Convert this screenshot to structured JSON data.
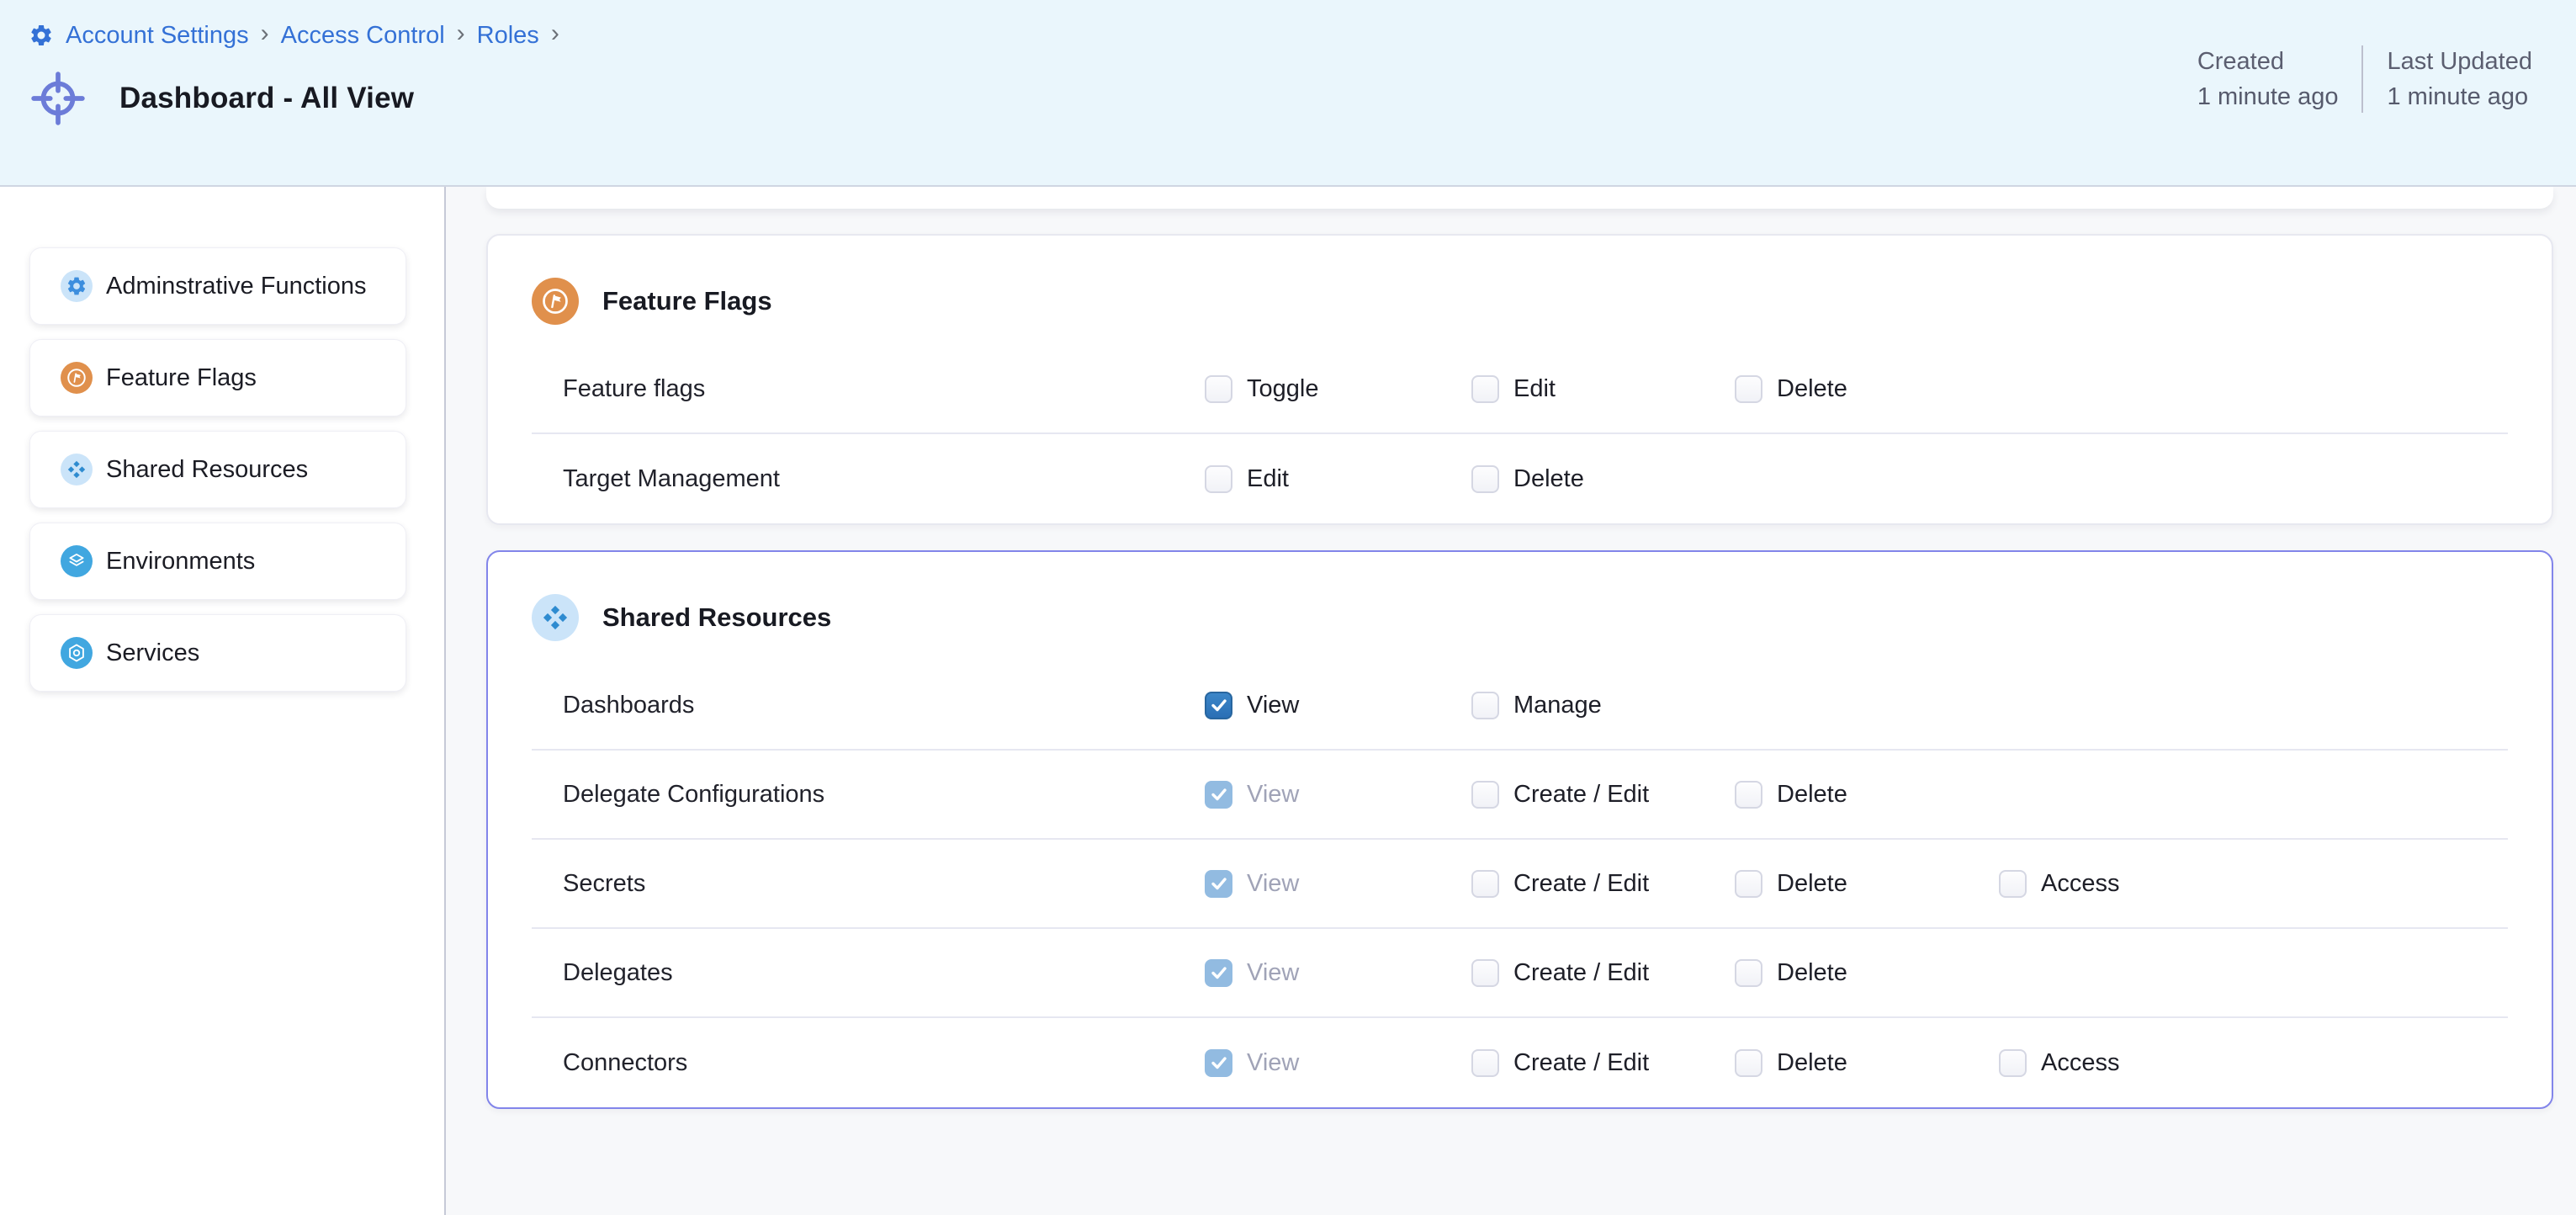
{
  "header": {
    "breadcrumb": {
      "items": [
        "Account Settings",
        "Access Control",
        "Roles"
      ],
      "separator": "›"
    },
    "title": "Dashboard - All View",
    "meta": [
      {
        "label": "Created",
        "value": "1 minute ago"
      },
      {
        "label": "Last Updated",
        "value": "1 minute ago"
      }
    ]
  },
  "sidebar": {
    "items": [
      {
        "label": "Adminstrative Functions",
        "icon": "gear",
        "iconBg": "#CBE4F9",
        "iconColor": "#3C8EDE"
      },
      {
        "label": "Feature Flags",
        "icon": "flag",
        "iconBg": "#E0904C",
        "iconColor": "#FFFFFF"
      },
      {
        "label": "Shared Resources",
        "icon": "diamond",
        "iconBg": "#CBE4F9",
        "iconColor": "#2E8BD0"
      },
      {
        "label": "Environments",
        "icon": "layers",
        "iconBg": "#41A7E0",
        "iconColor": "#FFFFFF"
      },
      {
        "label": "Services",
        "icon": "hexagon",
        "iconBg": "#41A7E0",
        "iconColor": "#FFFFFF"
      }
    ]
  },
  "sections": [
    {
      "title": "Feature Flags",
      "icon": "flag",
      "iconBg": "#E0904C",
      "iconColor": "#FFFFFF",
      "selected": false,
      "rows": [
        {
          "label": "Feature flags",
          "permissions": [
            {
              "label": "Toggle",
              "state": "unchecked"
            },
            {
              "label": "Edit",
              "state": "unchecked"
            },
            {
              "label": "Delete",
              "state": "unchecked"
            }
          ]
        },
        {
          "label": "Target Management",
          "permissions": [
            {
              "label": "Edit",
              "state": "unchecked"
            },
            {
              "label": "Delete",
              "state": "unchecked"
            }
          ]
        }
      ]
    },
    {
      "title": "Shared Resources",
      "icon": "diamond",
      "iconBg": "#CBE4F9",
      "iconColor": "#2E8BD0",
      "selected": true,
      "rows": [
        {
          "label": "Dashboards",
          "permissions": [
            {
              "label": "View",
              "state": "checked"
            },
            {
              "label": "Manage",
              "state": "unchecked"
            }
          ]
        },
        {
          "label": "Delegate Configurations",
          "permissions": [
            {
              "label": "View",
              "state": "checked-disabled"
            },
            {
              "label": "Create / Edit",
              "state": "unchecked"
            },
            {
              "label": "Delete",
              "state": "unchecked"
            }
          ]
        },
        {
          "label": "Secrets",
          "permissions": [
            {
              "label": "View",
              "state": "checked-disabled"
            },
            {
              "label": "Create / Edit",
              "state": "unchecked"
            },
            {
              "label": "Delete",
              "state": "unchecked"
            },
            {
              "label": "Access",
              "state": "unchecked"
            }
          ]
        },
        {
          "label": "Delegates",
          "permissions": [
            {
              "label": "View",
              "state": "checked-disabled"
            },
            {
              "label": "Create / Edit",
              "state": "unchecked"
            },
            {
              "label": "Delete",
              "state": "unchecked"
            }
          ]
        },
        {
          "label": "Connectors",
          "permissions": [
            {
              "label": "View",
              "state": "checked-disabled"
            },
            {
              "label": "Create / Edit",
              "state": "unchecked"
            },
            {
              "label": "Delete",
              "state": "unchecked"
            },
            {
              "label": "Access",
              "state": "unchecked"
            }
          ]
        }
      ]
    }
  ],
  "colors": {
    "headerBg": "#EAF6FC",
    "link": "#3471D6",
    "titleAccent": "#6C7CD8",
    "selectedBorder": "#8285EA",
    "checkboxChecked": "#2F79BE",
    "checkboxCheckedDisabled": "#92BBE1"
  }
}
